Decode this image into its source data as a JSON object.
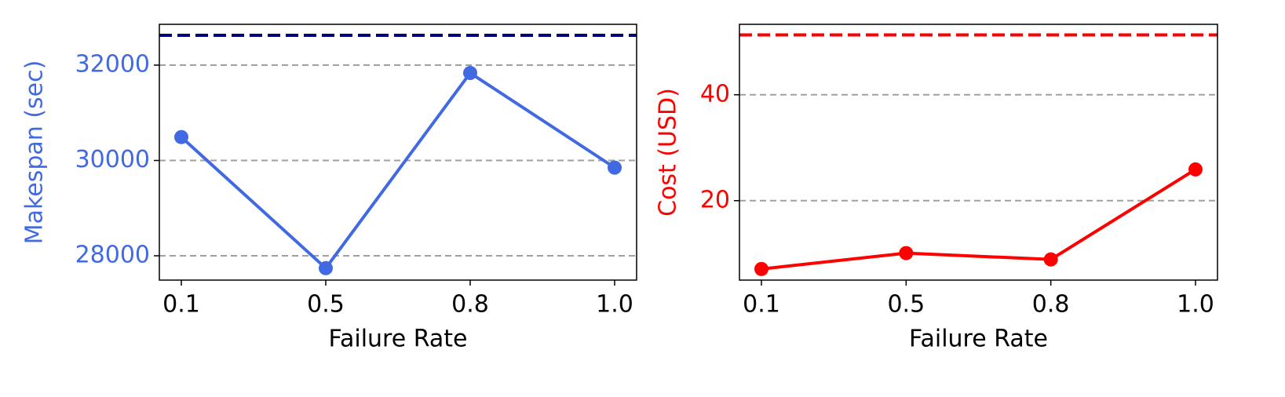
{
  "chart_data": [
    {
      "type": "line",
      "xlabel": "Failure Rate",
      "ylabel": "Makespan (sec)",
      "categories": [
        "0.1",
        "0.5",
        "0.8",
        "1.0"
      ],
      "series": [
        {
          "color": "#4169e1",
          "values": [
            30490,
            27740,
            31835,
            29850
          ]
        }
      ],
      "reference_line": {
        "value": 32625,
        "color": "#00007f"
      },
      "ylim": [
        27490,
        32856
      ],
      "yticks": [
        28000,
        30000,
        32000
      ],
      "grid": true
    },
    {
      "type": "line",
      "xlabel": "Failure Rate",
      "ylabel": "Cost (USD)",
      "categories": [
        "0.1",
        "0.5",
        "0.8",
        "1.0"
      ],
      "series": [
        {
          "color": "#ff0000",
          "values": [
            7.1,
            10.1,
            8.9,
            25.9
          ]
        }
      ],
      "reference_line": {
        "value": 51.3,
        "color": "#ff0000"
      },
      "ylim": [
        5.0,
        53.3
      ],
      "yticks": [
        20,
        40
      ],
      "grid": true
    }
  ]
}
